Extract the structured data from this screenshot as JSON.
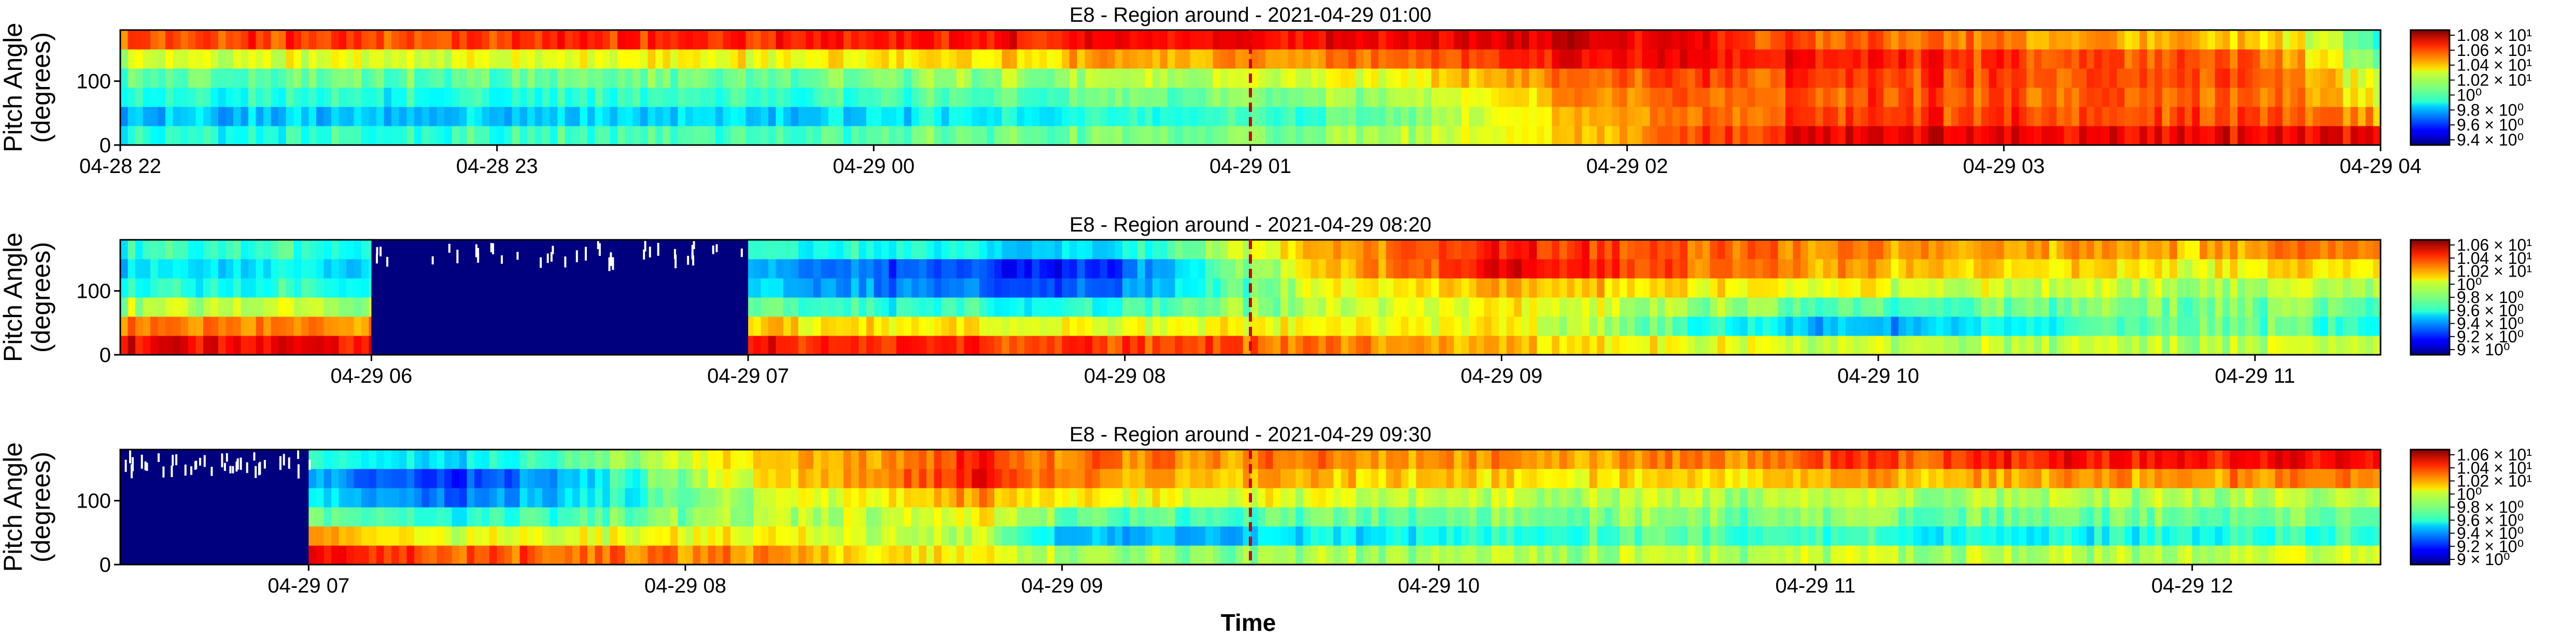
{
  "figure": {
    "xlabel": "Time",
    "cmap": "jet"
  },
  "chart_data": [
    {
      "type": "heatmap",
      "title": "E8 - Region around - 2021-04-29 01:00",
      "ylabel_line1": "Pitch Angle",
      "ylabel_line2": "(degrees)",
      "xlim": [
        "04-28 22:00",
        "04-29 04:00"
      ],
      "xticks": [
        "04-28 22",
        "04-28 23",
        "04-29 00",
        "04-29 01",
        "04-29 02",
        "04-29 03",
        "04-29 04"
      ],
      "ylim": [
        0,
        180
      ],
      "yticks": [
        "0",
        "100"
      ],
      "event_marker": "04-29 01:00",
      "colorbar_ticks": [
        "1.08 × 10¹",
        "1.06 × 10¹",
        "1.04 × 10¹",
        "1.02 × 10¹",
        "10⁰",
        "9.8 × 10⁰",
        "9.6 × 10⁰",
        "9.4 × 10⁰"
      ],
      "nodata_blocks": [],
      "profile_segments": [
        {
          "start": 0.0,
          "values": [
            0.4,
            0.31,
            0.4,
            0.46,
            0.58,
            0.8
          ]
        },
        {
          "start": 0.3,
          "values": [
            0.45,
            0.33,
            0.42,
            0.48,
            0.62,
            0.84
          ]
        },
        {
          "start": 0.55,
          "values": [
            0.52,
            0.45,
            0.52,
            0.6,
            0.75,
            0.88
          ]
        },
        {
          "start": 0.65,
          "values": [
            0.68,
            0.7,
            0.74,
            0.78,
            0.88,
            0.92
          ]
        },
        {
          "start": 0.755,
          "values": [
            0.9,
            0.82,
            0.8,
            0.82,
            0.85,
            0.78
          ]
        },
        {
          "start": 0.95,
          "values": [
            0.88,
            0.8,
            0.78,
            0.8,
            0.78,
            0.68
          ]
        },
        {
          "start": 1.0,
          "values": [
            0.88,
            0.7,
            0.6,
            0.55,
            0.45,
            0.42
          ]
        },
        {
          "start": 1.2,
          "values": [
            0.9,
            0.72,
            0.62,
            0.5,
            0.24,
            0.38
          ]
        },
        {
          "start": 1.35,
          "values": [
            0.82,
            0.62,
            0.5,
            0.4,
            0.16,
            0.32
          ]
        }
      ]
    },
    {
      "type": "heatmap",
      "title": "E8 - Region around - 2021-04-29 08:20",
      "ylabel_line1": "Pitch Angle",
      "ylabel_line2": "(degrees)",
      "xlim": [
        "04-29 05:20",
        "04-29 11:20"
      ],
      "xticks": [
        "04-29 06",
        "04-29 07",
        "04-29 08",
        "04-29 09",
        "04-29 10",
        "04-29 11"
      ],
      "ylim": [
        0,
        180
      ],
      "yticks": [
        "0",
        "100"
      ],
      "event_marker": "04-29 08:20",
      "colorbar_ticks": [
        "1.06 × 10¹",
        "1.04 × 10¹",
        "1.02 × 10¹",
        "10⁰",
        "9.8 × 10⁰",
        "9.6 × 10⁰",
        "9.4 × 10⁰",
        "9.2 × 10⁰",
        "9 × 10⁰"
      ],
      "nodata_blocks": [
        {
          "start": "04-29 06:00",
          "end": "04-29 07:00"
        }
      ],
      "profile_segments": [
        {
          "start": 0.0,
          "values": [
            0.88,
            0.75,
            0.55,
            0.4,
            0.35,
            0.42
          ]
        },
        {
          "start": 0.22,
          "values": [
            0.88,
            0.72,
            0.55,
            0.4,
            0.35,
            0.42
          ]
        },
        {
          "start": 0.35,
          "values": [
            0.82,
            0.62,
            0.4,
            0.24,
            0.2,
            0.38
          ]
        },
        {
          "start": 0.43,
          "values": [
            0.82,
            0.6,
            0.4,
            0.2,
            0.14,
            0.32
          ]
        },
        {
          "start": 0.53,
          "values": [
            0.75,
            0.62,
            0.55,
            0.58,
            0.66,
            0.68
          ]
        },
        {
          "start": 0.61,
          "values": [
            0.68,
            0.62,
            0.62,
            0.7,
            0.88,
            0.85
          ]
        },
        {
          "start": 0.77,
          "values": [
            0.55,
            0.28,
            0.45,
            0.6,
            0.7,
            0.72
          ]
        },
        {
          "start": 0.92,
          "values": [
            0.55,
            0.5,
            0.5,
            0.54,
            0.62,
            0.7
          ]
        },
        {
          "start": 1.0,
          "values": [
            0.58,
            0.4,
            0.48,
            0.55,
            0.65,
            0.78
          ]
        }
      ]
    },
    {
      "type": "heatmap",
      "title": "E8 - Region around - 2021-04-29 09:30",
      "ylabel_line1": "Pitch Angle",
      "ylabel_line2": "(degrees)",
      "xlim": [
        "04-29 06:30",
        "04-29 12:30"
      ],
      "xticks": [
        "04-29 07",
        "04-29 08",
        "04-29 09",
        "04-29 10",
        "04-29 11",
        "04-29 12"
      ],
      "ylim": [
        0,
        180
      ],
      "yticks": [
        "0",
        "100"
      ],
      "event_marker": "04-29 09:30",
      "colorbar_ticks": [
        "1.06 × 10¹",
        "1.04 × 10¹",
        "1.02 × 10¹",
        "10⁰",
        "9.8 × 10⁰",
        "9.6 × 10⁰",
        "9.4 × 10⁰",
        "9.2 × 10⁰",
        "9 × 10⁰"
      ],
      "nodata_blocks": [
        {
          "start": "04-29 06:30",
          "end": "04-29 07:00"
        }
      ],
      "profile_segments": [
        {
          "start": 0.0,
          "values": [
            0.88,
            0.75,
            0.55,
            0.4,
            0.35,
            0.42
          ]
        },
        {
          "start": 0.07,
          "values": [
            0.88,
            0.72,
            0.5,
            0.38,
            0.3,
            0.4
          ]
        },
        {
          "start": 0.15,
          "values": [
            0.8,
            0.6,
            0.4,
            0.22,
            0.16,
            0.35
          ]
        },
        {
          "start": 0.29,
          "values": [
            0.72,
            0.62,
            0.55,
            0.58,
            0.66,
            0.68
          ]
        },
        {
          "start": 0.38,
          "values": [
            0.62,
            0.55,
            0.62,
            0.72,
            0.86,
            0.82
          ]
        },
        {
          "start": 0.43,
          "values": [
            0.52,
            0.28,
            0.45,
            0.62,
            0.72,
            0.75
          ]
        },
        {
          "start": 0.67,
          "values": [
            0.55,
            0.45,
            0.5,
            0.55,
            0.64,
            0.72
          ]
        },
        {
          "start": 0.84,
          "values": [
            0.55,
            0.38,
            0.48,
            0.55,
            0.72,
            0.84
          ]
        },
        {
          "start": 1.0,
          "values": [
            0.58,
            0.42,
            0.48,
            0.55,
            0.75,
            0.88
          ]
        }
      ]
    }
  ]
}
